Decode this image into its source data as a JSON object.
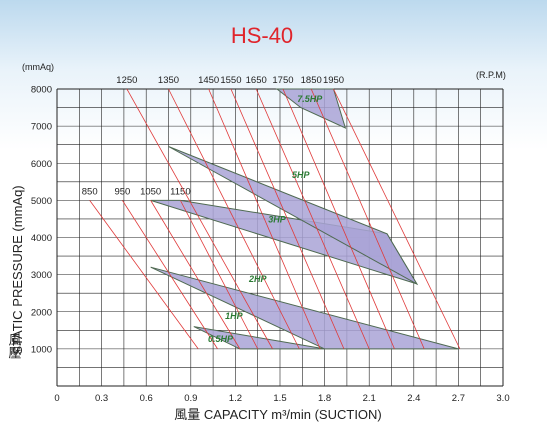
{
  "chart_data": {
    "type": "line",
    "title": "HS-40",
    "xlabel": "風量 CAPACITY m³/min (SUCTION)",
    "ylabel": "STATIC PRESSURE (mmAq)",
    "ylabel_cjk": "風壓",
    "y_unit": "(mmAq)",
    "rpm_unit": "(R.P.M)",
    "xlim": [
      0,
      3.0
    ],
    "ylim": [
      0,
      8000
    ],
    "x_ticks": [
      "0",
      "0.3",
      "0.6",
      "0.9",
      "1.2",
      "1.5",
      "1.8",
      "2.1",
      "2.4",
      "2.7",
      "3.0"
    ],
    "y_ticks": [
      "1000",
      "2000",
      "3000",
      "4000",
      "5000",
      "6000",
      "7000",
      "8000"
    ],
    "grid": true,
    "rpm_lines": [
      {
        "rpm": "850",
        "points": [
          [
            0.22,
            5000
          ],
          [
            0.95,
            1000
          ]
        ]
      },
      {
        "rpm": "950",
        "points": [
          [
            0.44,
            5000
          ],
          [
            1.08,
            1000
          ]
        ]
      },
      {
        "rpm": "1050",
        "points": [
          [
            0.63,
            5000
          ],
          [
            1.23,
            1000
          ]
        ]
      },
      {
        "rpm": "1150",
        "points": [
          [
            0.83,
            5000
          ],
          [
            1.35,
            1000
          ]
        ]
      },
      {
        "rpm": "1250",
        "points": [
          [
            0.47,
            8000
          ],
          [
            1.45,
            1000
          ]
        ]
      },
      {
        "rpm": "1350",
        "points": [
          [
            0.75,
            8000
          ],
          [
            1.63,
            1000
          ]
        ]
      },
      {
        "rpm": "1450",
        "points": [
          [
            1.02,
            8000
          ],
          [
            1.77,
            1000
          ]
        ]
      },
      {
        "rpm": "1550",
        "points": [
          [
            1.17,
            8000
          ],
          [
            1.93,
            1000
          ]
        ]
      },
      {
        "rpm": "1650",
        "points": [
          [
            1.34,
            8000
          ],
          [
            2.1,
            1000
          ]
        ]
      },
      {
        "rpm": "1750",
        "points": [
          [
            1.52,
            8000
          ],
          [
            2.27,
            1000
          ]
        ]
      },
      {
        "rpm": "1850",
        "points": [
          [
            1.71,
            8000
          ],
          [
            2.47,
            1000
          ]
        ]
      },
      {
        "rpm": "1950",
        "points": [
          [
            1.86,
            8000
          ],
          [
            2.71,
            1000
          ]
        ]
      }
    ],
    "power_bands": [
      {
        "label": "0.5HP",
        "polygon": [
          [
            0.92,
            1600
          ],
          [
            1.8,
            1000
          ],
          [
            1.23,
            1000
          ]
        ]
      },
      {
        "label": "1HP",
        "polygon": [
          [
            0.63,
            3200
          ],
          [
            2.7,
            1000
          ],
          [
            1.8,
            1000
          ]
        ]
      },
      {
        "label": "2HP",
        "polygon": [
          [
            0.63,
            5000
          ],
          [
            2.42,
            2750
          ],
          [
            2.22,
            4100
          ],
          [
            0.83,
            5000
          ]
        ]
      },
      {
        "label": "3HP",
        "polygon": [
          [
            0.75,
            6450
          ],
          [
            2.22,
            4100
          ],
          [
            2.42,
            2750
          ]
        ]
      },
      {
        "label": "5HP",
        "polygon": []
      },
      {
        "label": "7.5HP",
        "polygon": [
          [
            1.48,
            8000
          ],
          [
            1.86,
            8000
          ],
          [
            1.94,
            6950
          ],
          [
            1.64,
            7500
          ]
        ]
      }
    ],
    "hp_labels": [
      {
        "text": "7.5HP",
        "x": 1.7,
        "y": 7650
      },
      {
        "text": "5HP",
        "x": 1.64,
        "y": 5600
      },
      {
        "text": "3HP",
        "x": 1.48,
        "y": 4400
      },
      {
        "text": "2HP",
        "x": 1.35,
        "y": 2800
      },
      {
        "text": "1HP",
        "x": 1.19,
        "y": 1800
      },
      {
        "text": "0.5HP",
        "x": 1.1,
        "y": 1180
      }
    ]
  }
}
